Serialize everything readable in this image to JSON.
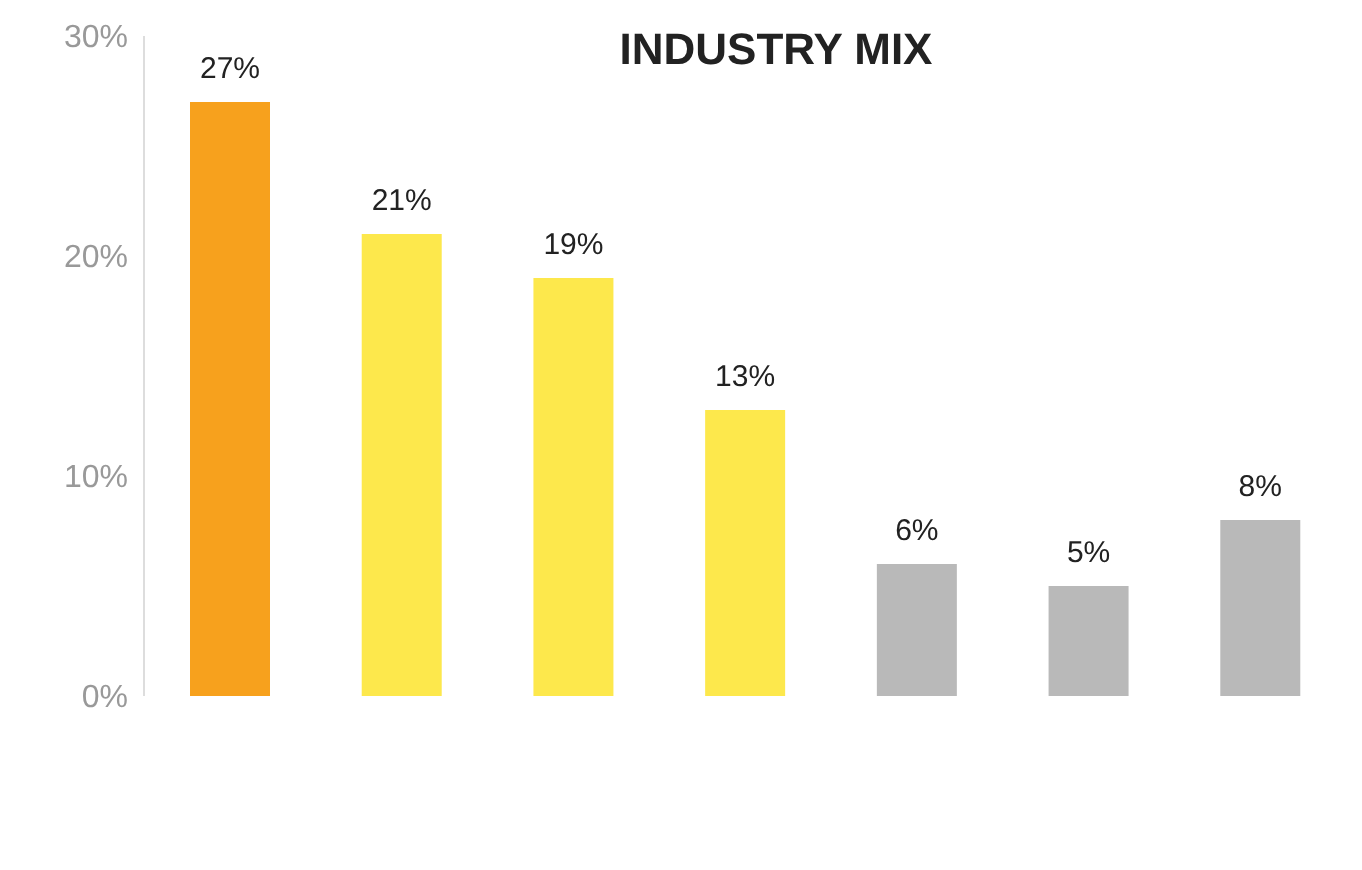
{
  "chart_data": {
    "type": "bar",
    "title": "INDUSTRY MIX",
    "categories": [
      null,
      null,
      null,
      null,
      null,
      null,
      null
    ],
    "values": [
      27,
      21,
      19,
      13,
      6,
      5,
      8
    ],
    "colors": [
      "#f7a11d",
      "#fde84c",
      "#fde84c",
      "#fde84c",
      "#b9b9b9",
      "#b9b9b9",
      "#b9b9b9"
    ],
    "value_labels": [
      "27%",
      "21%",
      "19%",
      "13%",
      "6%",
      "5%",
      "8%"
    ],
    "ylim": [
      0,
      30
    ],
    "yticks": [
      {
        "value": 0,
        "label": "0%"
      },
      {
        "value": 10,
        "label": "10%"
      },
      {
        "value": 20,
        "label": "20%"
      },
      {
        "value": 30,
        "label": "30%"
      }
    ],
    "grid": false
  }
}
